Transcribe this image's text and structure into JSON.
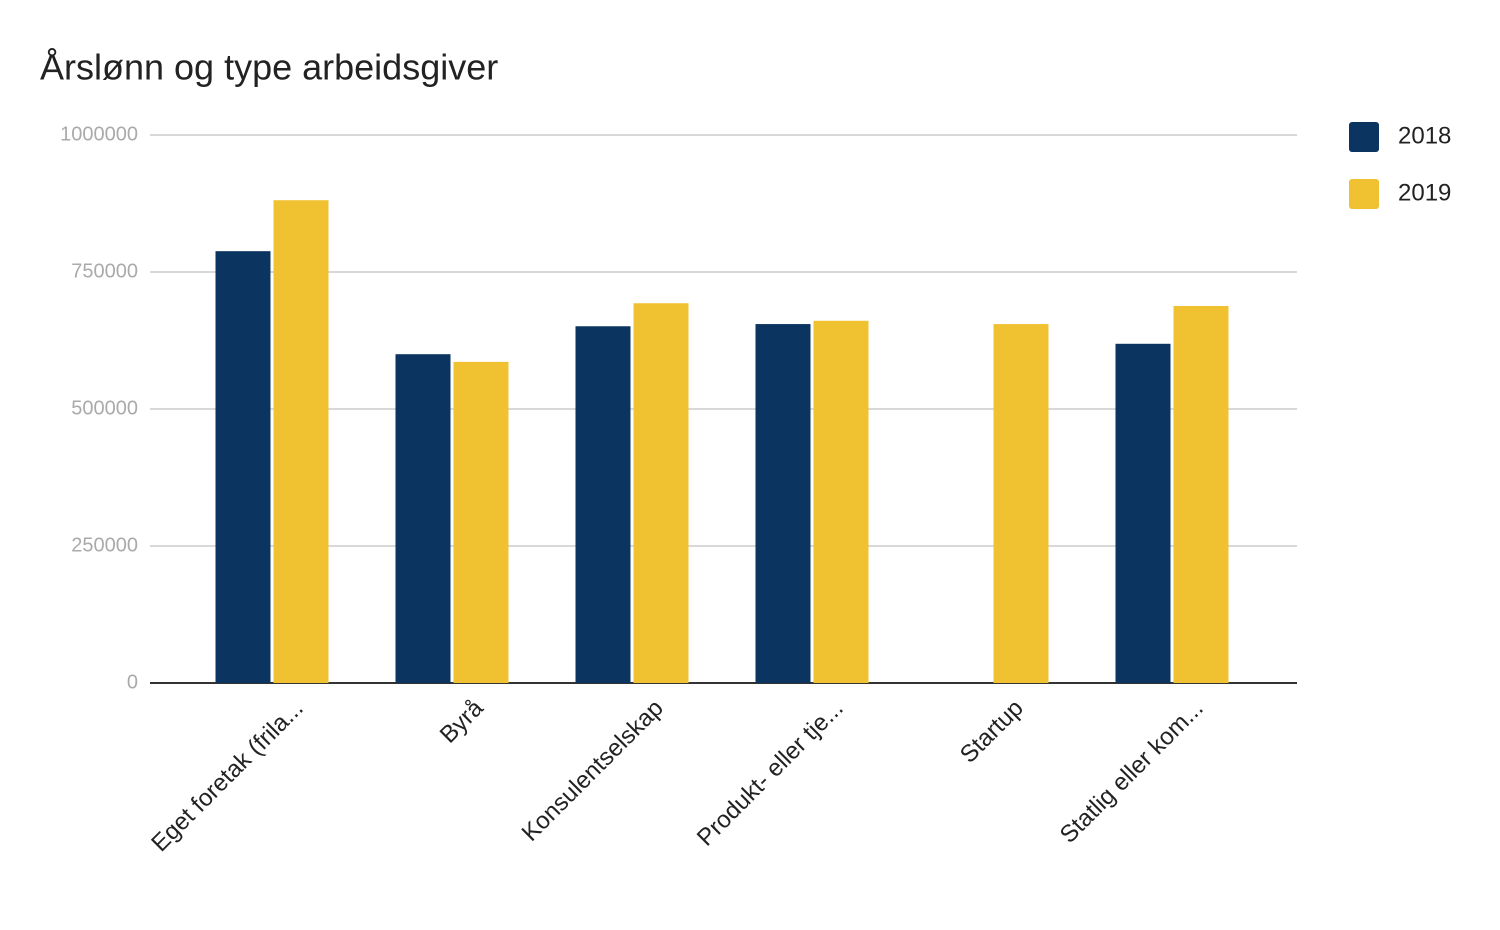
{
  "chart_data": {
    "type": "bar",
    "title": "Årslønn og type arbeidsgiver",
    "categories": [
      "Eget foretak (frila...",
      "Byrå",
      "Konsulentselskap",
      "Produkt- eller tje...",
      "Startup",
      "Statlig eller kom..."
    ],
    "series": [
      {
        "name": "2018",
        "color": "#0b3560",
        "values": [
          788000,
          600000,
          651000,
          655000,
          null,
          619000
        ]
      },
      {
        "name": "2019",
        "color": "#f0c131",
        "values": [
          881000,
          586000,
          693000,
          661000,
          655000,
          688000
        ]
      }
    ],
    "ylim": [
      0,
      1000000
    ],
    "yticks": [
      0,
      250000,
      500000,
      750000,
      1000000
    ],
    "grid": true,
    "legend": "right"
  }
}
